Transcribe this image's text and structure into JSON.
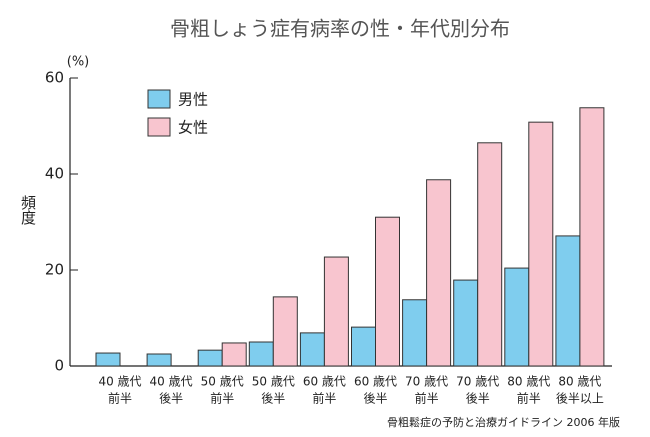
{
  "chart_data": {
    "type": "bar",
    "title": "骨粗しょう症有病率の性・年代別分布",
    "y_unit": "(%)",
    "y_label": "頻度",
    "source": "骨粗鬆症の予防と治療ガイドライン 2006 年版",
    "categories": [
      [
        "40 歳代",
        "前半"
      ],
      [
        "40 歳代",
        "後半"
      ],
      [
        "50 歳代",
        "前半"
      ],
      [
        "50 歳代",
        "後半"
      ],
      [
        "60 歳代",
        "前半"
      ],
      [
        "60 歳代",
        "後半"
      ],
      [
        "70 歳代",
        "前半"
      ],
      [
        "70 歳代",
        "後半"
      ],
      [
        "80 歳代",
        "前半"
      ],
      [
        "80 歳代",
        "後半以上"
      ]
    ],
    "series": [
      {
        "name": "男性",
        "color": "#7fcdee",
        "values": [
          2.7,
          2.5,
          3.3,
          5.0,
          6.9,
          8.1,
          13.8,
          17.9,
          20.4,
          27.1
        ]
      },
      {
        "name": "女性",
        "color": "#f8c5cf",
        "values": [
          null,
          null,
          4.8,
          14.4,
          22.7,
          31.0,
          38.8,
          46.5,
          50.8,
          53.8
        ]
      }
    ],
    "ylim": [
      0,
      60
    ],
    "yticks": [
      0,
      20,
      40,
      60
    ]
  }
}
